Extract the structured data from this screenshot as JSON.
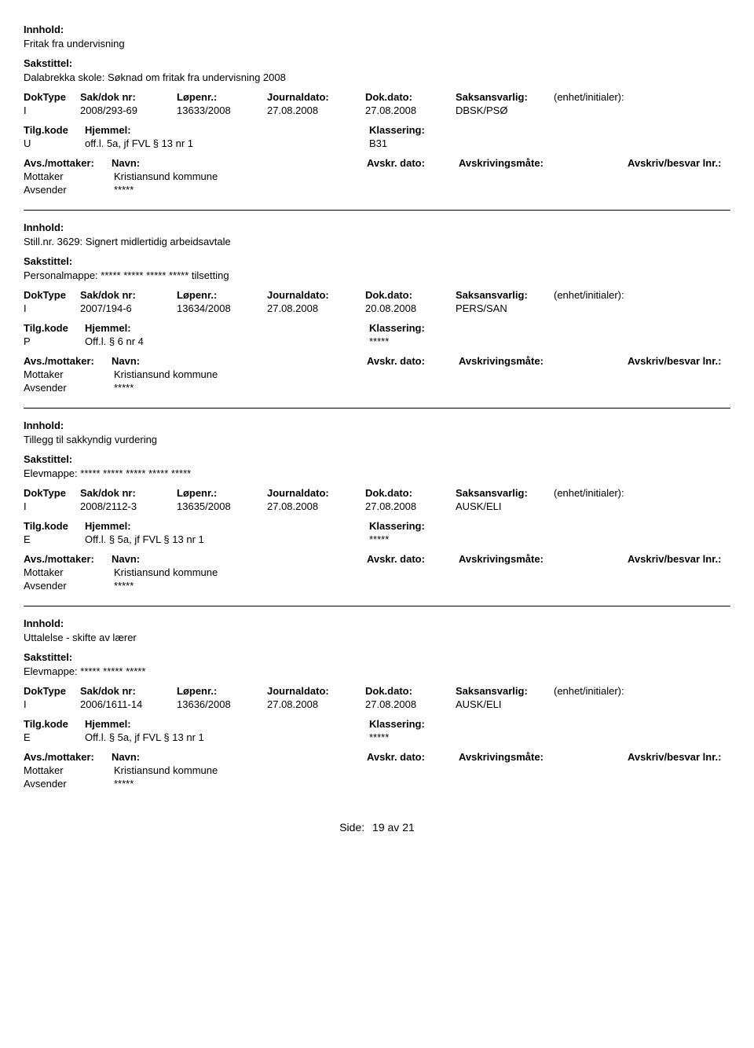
{
  "labels": {
    "innhold": "Innhold:",
    "sakstittel": "Sakstittel:",
    "doktype": "DokType",
    "sakdok": "Sak/dok nr:",
    "lopenr": "Løpenr.:",
    "journaldato": "Journaldato:",
    "dokdato": "Dok.dato:",
    "saksansvarlig": "Saksansvarlig:",
    "enhet": "(enhet/initialer):",
    "tilgkode": "Tilg.kode",
    "hjemmel": "Hjemmel:",
    "klassering": "Klassering:",
    "avsmottaker": "Avs./mottaker:",
    "navn": "Navn:",
    "avskrdato": "Avskr. dato:",
    "avskrivmate": "Avskrivingsmåte:",
    "avskrivbesvar": "Avskriv/besvar lnr.:",
    "mottaker": "Mottaker",
    "avsender": "Avsender"
  },
  "records": [
    {
      "innhold": "Fritak fra undervisning",
      "sakstittel": "Dalabrekka skole: Søknad om fritak fra undervisning 2008",
      "doktype": "I",
      "sakdok": "2008/293-69",
      "lopenr": "13633/2008",
      "jdato": "27.08.2008",
      "ddato": "27.08.2008",
      "saks": "DBSK/PSØ",
      "tilg": "U",
      "hjem": "off.l. 5a, jf FVL § 13 nr 1",
      "klass": "B31",
      "mottaker": "Kristiansund kommune",
      "avsender": "*****",
      "showAvsHeader": false
    },
    {
      "innhold": "Still.nr. 3629: Signert midlertidig arbeidsavtale",
      "sakstittel": "Personalmappe: ***** ***** ***** ***** tilsetting",
      "doktype": "I",
      "sakdok": "2007/194-6",
      "lopenr": "13634/2008",
      "jdato": "27.08.2008",
      "ddato": "20.08.2008",
      "saks": "PERS/SAN",
      "tilg": "P",
      "hjem": "Off.l. § 6 nr 4",
      "klass": "*****",
      "mottaker": "Kristiansund kommune",
      "avsender": "*****",
      "showAvsHeader": false
    },
    {
      "innhold": "Tillegg til sakkyndig vurdering",
      "sakstittel": "Elevmappe: ***** ***** ***** ***** *****",
      "doktype": "I",
      "sakdok": "2008/2112-3",
      "lopenr": "13635/2008",
      "jdato": "27.08.2008",
      "ddato": "27.08.2008",
      "saks": "AUSK/ELI",
      "tilg": "E",
      "hjem": "Off.l. § 5a, jf FVL § 13 nr 1",
      "klass": "*****",
      "mottaker": "Kristiansund kommune",
      "avsender": "*****",
      "showAvsHeader": true
    },
    {
      "innhold": "Uttalelse - skifte av lærer",
      "sakstittel": "Elevmappe: ***** ***** *****",
      "doktype": "I",
      "sakdok": "2006/1611-14",
      "lopenr": "13636/2008",
      "jdato": "27.08.2008",
      "ddato": "27.08.2008",
      "saks": "AUSK/ELI",
      "tilg": "E",
      "hjem": "Off.l. § 5a, jf FVL § 13 nr 1",
      "klass": "*****",
      "mottaker": "Kristiansund kommune",
      "avsender": "*****",
      "showAvsHeader": true
    }
  ],
  "footer": {
    "side_label": "Side:",
    "page_current": "19",
    "page_sep": "av",
    "page_total": "21"
  }
}
